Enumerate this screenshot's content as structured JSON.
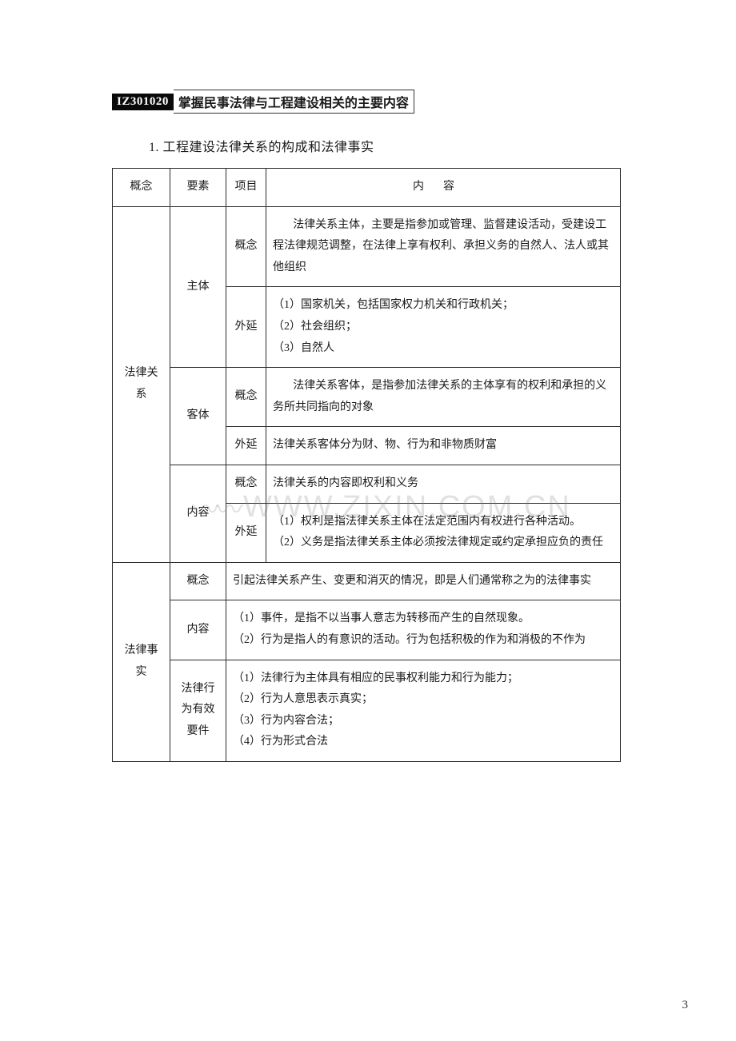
{
  "header": {
    "code": "IZ301020",
    "title": "掌握民事法律与工程建设相关的主要内容"
  },
  "subtitle": "1. 工程建设法律关系的构成和法律事实",
  "columns": {
    "c1": "概念",
    "c2": "要素",
    "c3": "项目",
    "c4": "内容"
  },
  "rows": {
    "r1_c1": "法律关系",
    "r1_c2": "主体",
    "r1_c3": "概念",
    "r1_c4": "法律关系主体，主要是指参加或管理、监督建设活动，受建设工程法律规范调整，在法律上享有权利、承担义务的自然人、法人或其他组织",
    "r2_c3": "外延",
    "r2_c4": "（1）国家机关，包括国家权力机关和行政机关；\n（2）社会组织；\n（3）自然人",
    "r3_c2": "客体",
    "r3_c3": "概念",
    "r3_c4": "法律关系客体，是指参加法律关系的主体享有的权利和承担的义务所共同指向的对象",
    "r4_c3": "外延",
    "r4_c4": "法律关系客体分为财、物、行为和非物质财富",
    "r5_c2": "内容",
    "r5_c3": "概念",
    "r5_c4": "法律关系的内容即权利和义务",
    "r6_c3": "外延",
    "r6_c4": "（1）权利是指法律关系主体在法定范围内有权进行各种活动。\n（2）义务是指法律关系主体必须按法律规定或约定承担应负的责任",
    "r7_c1": "法律事实",
    "r7_c2": "概念",
    "r7_c4": "引起法律关系产生、变更和消灭的情况，即是人们通常称之为的法律事实",
    "r8_c2": "内容",
    "r8_c4": "（1）事件，是指不以当事人意志为转移而产生的自然现象。\n（2）行为是指人的有意识的活动。行为包括积极的作为和消极的不作为",
    "r9_c2": "法律行为有效要件",
    "r9_c4": "（1）法律行为主体具有相应的民事权利能力和行为能力；\n（2）行为人意思表示真实；\n（3）行为内容合法；\n（4）行为形式合法"
  },
  "watermark": "WWW.ZIXIN.COM.CN",
  "pageNumber": "3"
}
